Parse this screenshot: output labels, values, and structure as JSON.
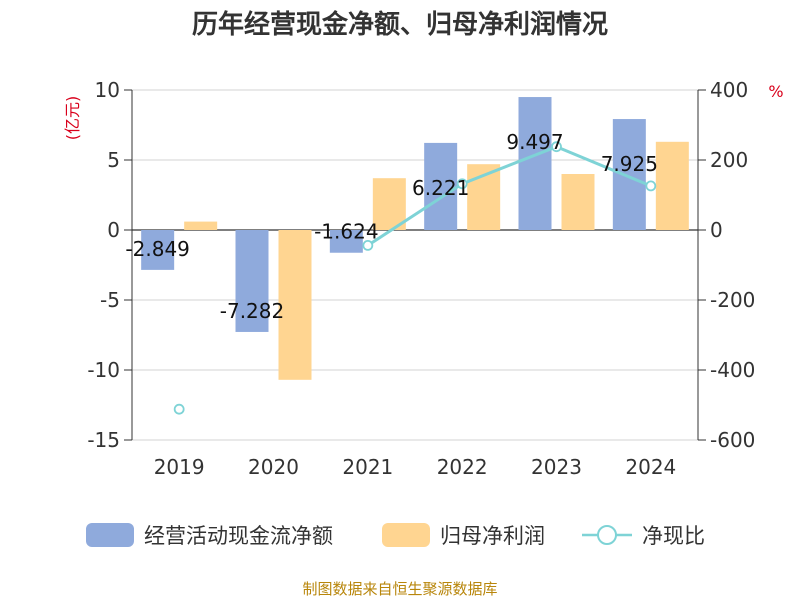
{
  "chart_data": {
    "type": "bar",
    "title": "历年经营现金净额、归母净利润情况",
    "categories": [
      "2019",
      "2020",
      "2021",
      "2022",
      "2023",
      "2024"
    ],
    "series": [
      {
        "name": "经营活动现金流净额",
        "kind": "bar",
        "axis": "left",
        "color": "#8faadc",
        "values": [
          -2.849,
          -7.282,
          -1.624,
          6.221,
          9.497,
          7.925
        ],
        "labels": [
          "-2.849",
          "-7.282",
          "-1.624",
          "6.221",
          "9.497",
          "7.925"
        ]
      },
      {
        "name": "归母净利润",
        "kind": "bar",
        "axis": "left",
        "color": "#ffd591",
        "values": [
          0.6,
          -10.7,
          3.7,
          4.7,
          4.0,
          6.3
        ]
      },
      {
        "name": "净现比",
        "kind": "line",
        "axis": "right",
        "color": "#7ed3d6",
        "values": [
          -512,
          null,
          -44,
          132,
          238,
          126
        ]
      }
    ],
    "left_axis": {
      "unit": "(亿元)",
      "ylim": [
        -15,
        10
      ],
      "ticks": [
        10,
        5,
        0,
        -5,
        -10,
        -15
      ]
    },
    "right_axis": {
      "unit": "%",
      "ylim": [
        -600,
        400
      ],
      "ticks": [
        400,
        200,
        0,
        -200,
        -400,
        -600
      ]
    },
    "grid": true,
    "legend_position": "bottom"
  },
  "source": "制图数据来自恒生聚源数据库"
}
